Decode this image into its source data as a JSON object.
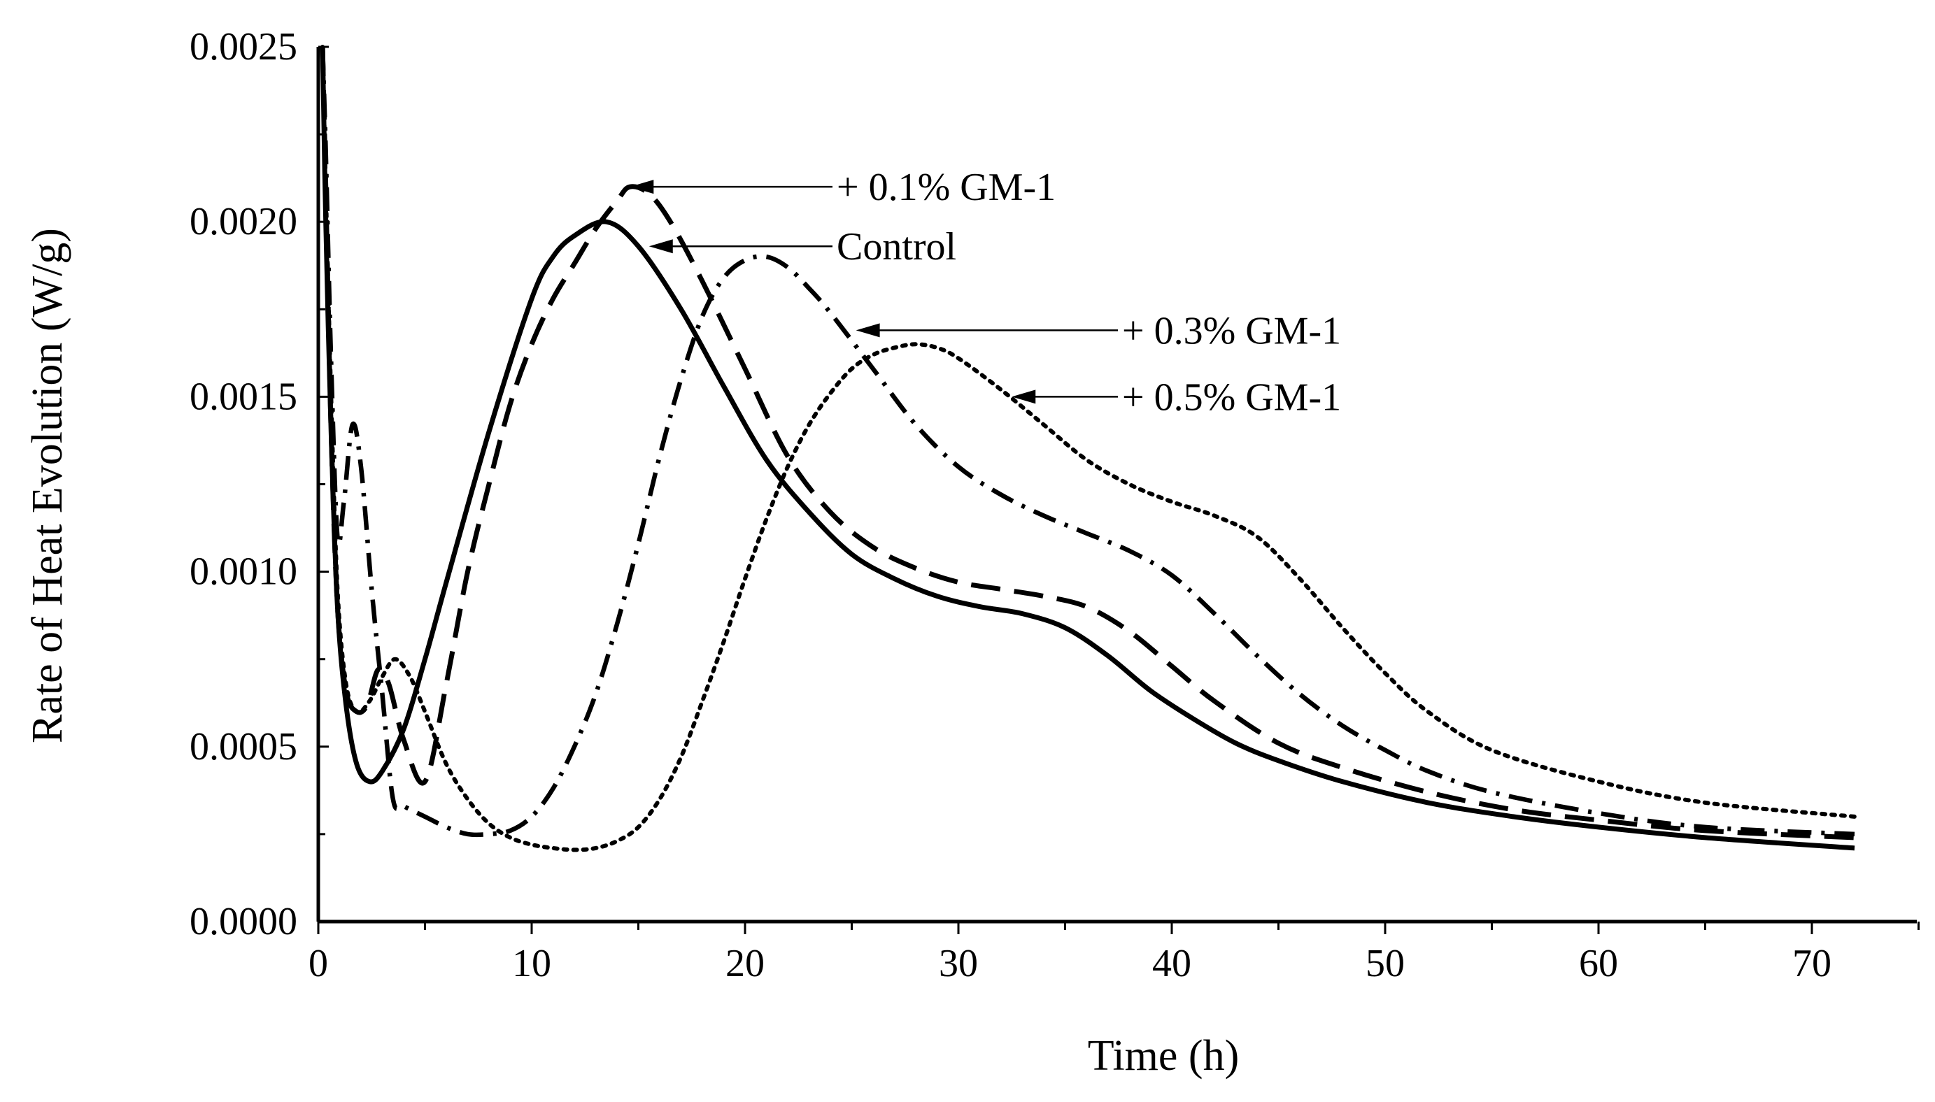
{
  "chart_data": {
    "type": "line",
    "title": "",
    "xlabel": "Time (h)",
    "ylabel": "Rate of Heat Evolution (W/g)",
    "xlim": [
      0,
      75
    ],
    "ylim": [
      0,
      0.0025
    ],
    "x_ticks": [
      0,
      10,
      20,
      30,
      40,
      50,
      60,
      70
    ],
    "x_tick_labels": [
      "0",
      "10",
      "20",
      "30",
      "40",
      "50",
      "60",
      "70"
    ],
    "y_ticks": [
      0,
      0.0005,
      0.001,
      0.0015,
      0.002,
      0.0025
    ],
    "y_tick_labels": [
      "0.0000",
      "0.0005",
      "0.0010",
      "0.0015",
      "0.0020",
      "0.0025"
    ],
    "grid": false,
    "series": [
      {
        "name": "Control",
        "style": "solid",
        "x": [
          0.2,
          0.35,
          0.6,
          0.9,
          1.3,
          1.8,
          2.4,
          3,
          4,
          5,
          6,
          8,
          10,
          11,
          12,
          13.5,
          15,
          17,
          19,
          21,
          23,
          25,
          27,
          29,
          31,
          33,
          35,
          37,
          39,
          41,
          43,
          45,
          48,
          52,
          56,
          60,
          65,
          72
        ],
        "y": [
          0.0025,
          0.002,
          0.0014,
          0.0009,
          0.00062,
          0.00045,
          0.0004,
          0.00043,
          0.00055,
          0.00075,
          0.00097,
          0.0014,
          0.00178,
          0.0019,
          0.00196,
          0.002,
          0.00193,
          0.00175,
          0.00153,
          0.00132,
          0.00117,
          0.00105,
          0.00098,
          0.00093,
          0.0009,
          0.00088,
          0.00084,
          0.00076,
          0.00066,
          0.00058,
          0.00051,
          0.00046,
          0.0004,
          0.00034,
          0.0003,
          0.00027,
          0.00024,
          0.00021
        ]
      },
      {
        "name": "+ 0.1% GM-1",
        "style": "dashed",
        "x": [
          0.2,
          0.35,
          0.6,
          0.9,
          1.3,
          1.8,
          2.3,
          2.8,
          3.3,
          4,
          5,
          6,
          7,
          8,
          9,
          10,
          11,
          12,
          13,
          14,
          14.6,
          15.5,
          16.5,
          18,
          20,
          22,
          24,
          26,
          28,
          30,
          32,
          34,
          36,
          38,
          40,
          42,
          45,
          48,
          52,
          56,
          60,
          65,
          72
        ],
        "y": [
          0.0025,
          0.0021,
          0.0014,
          0.0009,
          0.00066,
          0.0006,
          0.00062,
          0.00072,
          0.00068,
          0.00052,
          0.0004,
          0.00068,
          0.001,
          0.00125,
          0.00148,
          0.00165,
          0.00178,
          0.00188,
          0.00198,
          0.00206,
          0.0021,
          0.00208,
          0.002,
          0.00183,
          0.00158,
          0.00133,
          0.00117,
          0.00107,
          0.00101,
          0.00097,
          0.00095,
          0.00093,
          0.0009,
          0.00083,
          0.00073,
          0.00063,
          0.00051,
          0.00044,
          0.00037,
          0.00032,
          0.00029,
          0.00026,
          0.00024
        ]
      },
      {
        "name": "+ 0.3% GM-1",
        "style": "dash-dot",
        "x": [
          0.2,
          0.35,
          0.6,
          0.9,
          1.2,
          1.6,
          2,
          2.5,
          3,
          3.5,
          4,
          5,
          6,
          7,
          8,
          9,
          10,
          11,
          12,
          13,
          14,
          15,
          16,
          17,
          18,
          19,
          20,
          21,
          22,
          23,
          24,
          26,
          28,
          30,
          32,
          34,
          36,
          38,
          40,
          42,
          44,
          46,
          48,
          50,
          52,
          55,
          60,
          65,
          72
        ],
        "y": [
          0.0025,
          0.0022,
          0.0016,
          0.0011,
          0.0012,
          0.00142,
          0.0013,
          0.00095,
          0.00065,
          0.00035,
          0.00033,
          0.0003,
          0.00027,
          0.00025,
          0.00025,
          0.00026,
          0.0003,
          0.00038,
          0.0005,
          0.00065,
          0.00085,
          0.00108,
          0.00133,
          0.00155,
          0.00173,
          0.00184,
          0.00189,
          0.0019,
          0.00187,
          0.00181,
          0.00174,
          0.00158,
          0.00142,
          0.0013,
          0.00122,
          0.00116,
          0.00111,
          0.00106,
          0.00099,
          0.00088,
          0.00076,
          0.00065,
          0.00056,
          0.00049,
          0.00043,
          0.00037,
          0.00031,
          0.00027,
          0.00025
        ]
      },
      {
        "name": "+ 0.5% GM-1",
        "style": "dotted",
        "x": [
          0.2,
          0.35,
          0.6,
          0.9,
          1.3,
          1.8,
          2.4,
          3,
          3.6,
          4.3,
          5,
          6,
          7,
          8,
          9,
          10,
          11,
          12,
          13,
          14,
          15,
          16,
          17,
          18,
          19,
          20,
          21,
          22,
          23,
          24,
          25,
          26,
          27,
          28,
          29,
          30,
          32,
          34,
          36,
          38,
          40,
          42,
          44,
          46,
          48,
          50,
          52,
          55,
          60,
          65,
          72
        ],
        "y": [
          0.0025,
          0.0021,
          0.0015,
          0.00095,
          0.00068,
          0.0006,
          0.00063,
          0.0007,
          0.00075,
          0.0007,
          0.0006,
          0.00045,
          0.00035,
          0.00028,
          0.00024,
          0.00022,
          0.00021,
          0.000205,
          0.00021,
          0.00023,
          0.00027,
          0.00035,
          0.00047,
          0.00063,
          0.0008,
          0.00098,
          0.00115,
          0.0013,
          0.00142,
          0.00151,
          0.00158,
          0.00162,
          0.00164,
          0.00165,
          0.00164,
          0.00161,
          0.00152,
          0.00142,
          0.00132,
          0.00125,
          0.0012,
          0.00116,
          0.0011,
          0.00098,
          0.00084,
          0.00071,
          0.0006,
          0.00049,
          0.0004,
          0.00034,
          0.0003
        ]
      }
    ],
    "annotations": [
      {
        "text": "+ 0.1% GM-1",
        "series": "+ 0.1% GM-1",
        "arrow_to": [
          14.6,
          0.0021
        ]
      },
      {
        "text": "Control",
        "series": "Control",
        "arrow_to": [
          15.5,
          0.00193
        ]
      },
      {
        "text": "+ 0.3% GM-1",
        "series": "+ 0.3% GM-1",
        "arrow_to": [
          25.2,
          0.00169
        ]
      },
      {
        "text": "+ 0.5% GM-1",
        "series": "+ 0.5% GM-1",
        "arrow_to": [
          32.5,
          0.0015
        ]
      }
    ]
  }
}
